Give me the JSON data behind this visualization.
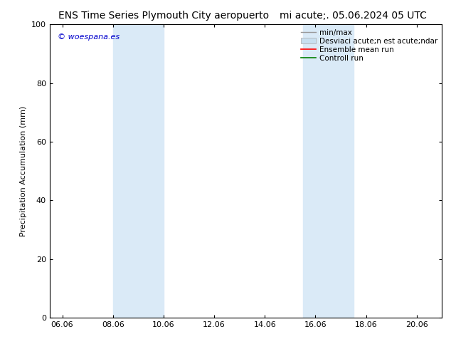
{
  "title_left": "ENS Time Series Plymouth City aeropuerto",
  "title_right": "mi acute;. 05.06.2024 05 UTC",
  "ylabel": "Precipitation Accumulation (mm)",
  "xlim_min": 5.5,
  "xlim_max": 21.0,
  "ylim_min": 0,
  "ylim_max": 100,
  "xtick_labels": [
    "06.06",
    "08.06",
    "10.06",
    "12.06",
    "14.06",
    "16.06",
    "18.06",
    "20.06"
  ],
  "xtick_values": [
    6,
    8,
    10,
    12,
    14,
    16,
    18,
    20
  ],
  "ytick_values": [
    0,
    20,
    40,
    60,
    80,
    100
  ],
  "shade_bands": [
    {
      "xmin": 8.0,
      "xmax": 10.0
    },
    {
      "xmin": 15.5,
      "xmax": 17.5
    }
  ],
  "shade_color": "#daeaf7",
  "watermark_text": "© woespana.es",
  "watermark_color": "#0000cc",
  "bg_color": "#ffffff",
  "title_fontsize": 10,
  "tick_fontsize": 8,
  "ylabel_fontsize": 8,
  "legend_fontsize": 7.5,
  "legend_label_minmax": "min/max",
  "legend_label_desv": "Desviaci acute;n est acute;ndar",
  "legend_label_ensemble": "Ensemble mean run",
  "legend_label_control": "Controll run",
  "legend_color_minmax": "#999999",
  "legend_color_desv": "#c8dff0",
  "legend_color_ensemble": "#ff0000",
  "legend_color_control": "#008000"
}
